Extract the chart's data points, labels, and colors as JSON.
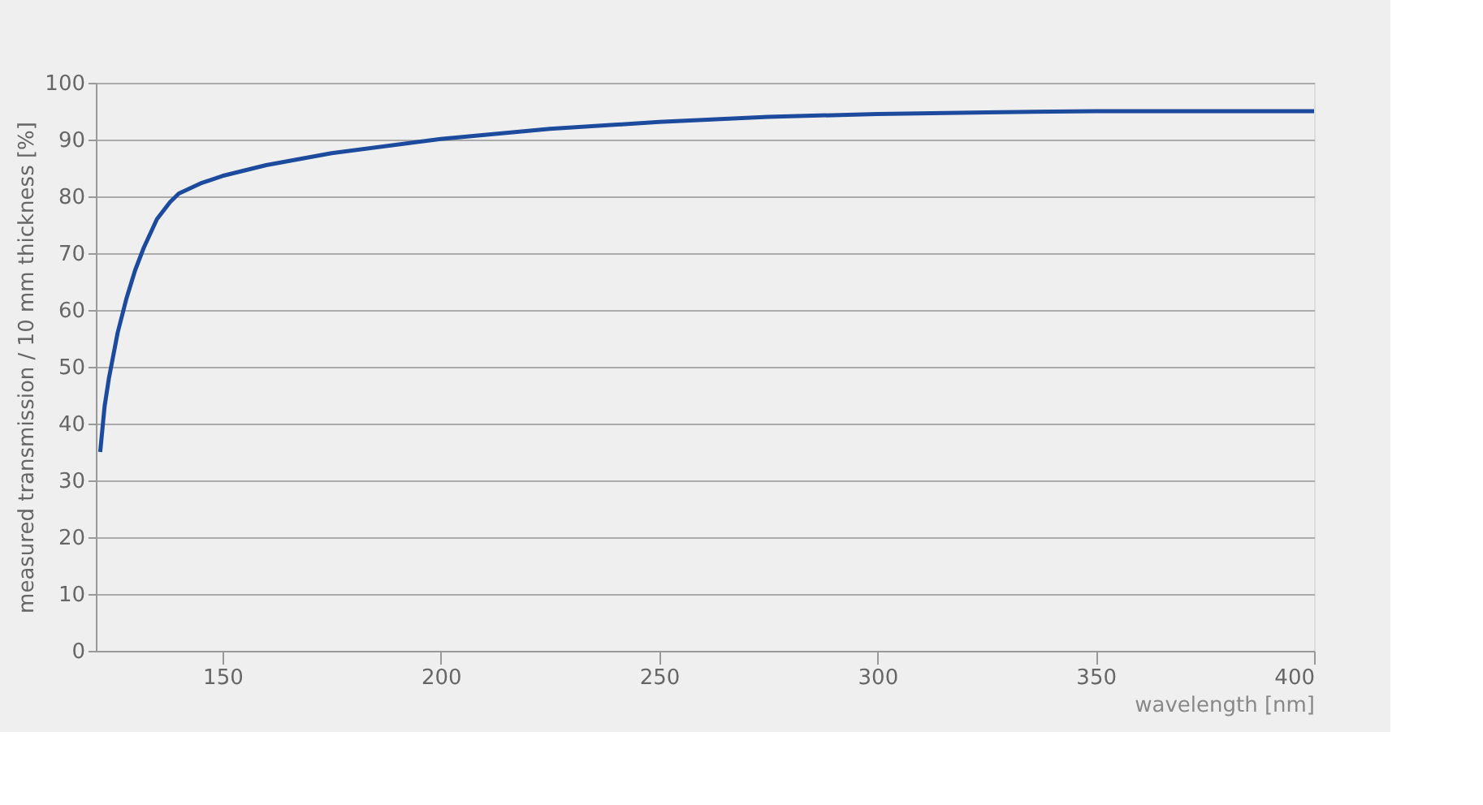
{
  "chart_data": {
    "type": "line",
    "xlabel": "wavelength [nm]",
    "ylabel": "measured transmission / 10 mm thickness [%]",
    "x": [
      122,
      123,
      124,
      125,
      126,
      128,
      130,
      132,
      135,
      138,
      140,
      145,
      150,
      160,
      175,
      200,
      225,
      250,
      275,
      300,
      325,
      350,
      375,
      400
    ],
    "series": [
      {
        "color": "#1c4a9c",
        "values": [
          35,
          43,
          48,
          52,
          56,
          62,
          67,
          71,
          76,
          79,
          80.5,
          82.3,
          83.6,
          85.5,
          87.6,
          90.1,
          91.9,
          93.1,
          94,
          94.5,
          94.8,
          95,
          95,
          95
        ]
      }
    ],
    "xlim": [
      121,
      400
    ],
    "xticks": [
      150,
      200,
      250,
      300,
      350,
      400
    ],
    "ylim": [
      0,
      100
    ],
    "yticks": [
      0,
      10,
      20,
      30,
      40,
      50,
      60,
      70,
      80,
      90,
      100
    ],
    "grid": "y",
    "legend": false,
    "marker": "none",
    "line_style": "solid"
  }
}
